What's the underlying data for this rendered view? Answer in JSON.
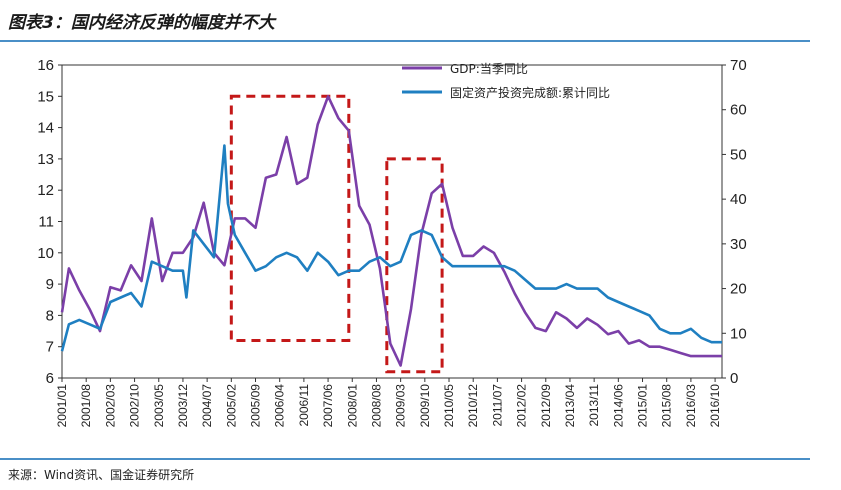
{
  "figure": {
    "title": "图表3：国内经济反弹的幅度并不大",
    "source": "来源：Wind资讯、国金证券研究所"
  },
  "chart_data": {
    "type": "line",
    "x_ticks": [
      "2001/01",
      "2001/08",
      "2002/03",
      "2002/10",
      "2003/05",
      "2003/12",
      "2004/07",
      "2005/02",
      "2005/09",
      "2006/04",
      "2006/11",
      "2007/06",
      "2008/01",
      "2008/08",
      "2009/03",
      "2009/10",
      "2010/05",
      "2010/12",
      "2011/07",
      "2012/02",
      "2012/09",
      "2013/04",
      "2013/11",
      "2014/06",
      "2015/01",
      "2015/08",
      "2016/03",
      "2016/10"
    ],
    "left_axis": {
      "ylim": [
        6,
        16
      ],
      "ticks": [
        6,
        7,
        8,
        9,
        10,
        11,
        12,
        13,
        14,
        15,
        16
      ]
    },
    "right_axis": {
      "ylim": [
        0,
        70
      ],
      "ticks": [
        0,
        10,
        20,
        30,
        40,
        50,
        60,
        70
      ]
    },
    "series": [
      {
        "name": "GDP:当季同比",
        "axis": "left",
        "color": "#7b3fa8",
        "x": [
          "2001/01",
          "2001/03",
          "2001/06",
          "2001/09",
          "2001/12",
          "2002/03",
          "2002/06",
          "2002/09",
          "2002/12",
          "2003/03",
          "2003/06",
          "2003/09",
          "2003/12",
          "2004/03",
          "2004/06",
          "2004/09",
          "2004/12",
          "2005/03",
          "2005/06",
          "2005/09",
          "2005/12",
          "2006/03",
          "2006/06",
          "2006/09",
          "2006/12",
          "2007/03",
          "2007/06",
          "2007/09",
          "2007/12",
          "2008/03",
          "2008/06",
          "2008/09",
          "2008/12",
          "2009/03",
          "2009/06",
          "2009/09",
          "2009/12",
          "2010/03",
          "2010/06",
          "2010/09",
          "2010/12",
          "2011/03",
          "2011/06",
          "2011/09",
          "2011/12",
          "2012/03",
          "2012/06",
          "2012/09",
          "2012/12",
          "2013/03",
          "2013/06",
          "2013/09",
          "2013/12",
          "2014/03",
          "2014/06",
          "2014/09",
          "2014/12",
          "2015/03",
          "2015/06",
          "2015/09",
          "2015/12",
          "2016/03",
          "2016/06",
          "2016/09",
          "2016/12"
        ],
        "values": [
          8.1,
          9.5,
          8.8,
          8.2,
          7.5,
          8.9,
          8.8,
          9.6,
          9.1,
          11.1,
          9.1,
          10.0,
          10.0,
          10.5,
          11.6,
          10.0,
          9.6,
          11.1,
          11.1,
          10.8,
          12.4,
          12.5,
          13.7,
          12.2,
          12.4,
          14.1,
          15.0,
          14.3,
          13.9,
          11.5,
          10.9,
          9.5,
          7.1,
          6.4,
          8.2,
          10.6,
          11.9,
          12.2,
          10.8,
          9.9,
          9.9,
          10.2,
          10.0,
          9.4,
          8.7,
          8.1,
          7.6,
          7.5,
          8.1,
          7.9,
          7.6,
          7.9,
          7.7,
          7.4,
          7.5,
          7.1,
          7.2,
          7.0,
          7.0,
          6.9,
          6.8,
          6.7,
          6.7,
          6.7,
          6.7
        ]
      },
      {
        "name": "固定资产投资完成额:累计同比",
        "axis": "right",
        "color": "#1f7fc1",
        "x": [
          "2001/01",
          "2001/03",
          "2001/06",
          "2001/09",
          "2001/12",
          "2002/03",
          "2002/06",
          "2002/09",
          "2002/12",
          "2003/03",
          "2003/06",
          "2003/09",
          "2003/12",
          "2004/01",
          "2004/03",
          "2004/06",
          "2004/09",
          "2004/12",
          "2005/01",
          "2005/03",
          "2005/06",
          "2005/09",
          "2005/12",
          "2006/03",
          "2006/06",
          "2006/09",
          "2006/12",
          "2007/03",
          "2007/06",
          "2007/09",
          "2007/12",
          "2008/03",
          "2008/06",
          "2008/09",
          "2008/12",
          "2009/03",
          "2009/06",
          "2009/09",
          "2009/12",
          "2010/03",
          "2010/06",
          "2010/09",
          "2010/12",
          "2011/03",
          "2011/06",
          "2011/09",
          "2011/12",
          "2012/03",
          "2012/06",
          "2012/09",
          "2012/12",
          "2013/03",
          "2013/06",
          "2013/09",
          "2013/12",
          "2014/03",
          "2014/06",
          "2014/09",
          "2014/12",
          "2015/03",
          "2015/06",
          "2015/09",
          "2015/12",
          "2016/03",
          "2016/06",
          "2016/09",
          "2016/12"
        ],
        "values": [
          6.0,
          12.0,
          13.0,
          12.0,
          11.0,
          17.0,
          18.0,
          19.0,
          16.0,
          26.0,
          25.0,
          24.0,
          24.0,
          18.0,
          33.0,
          30.0,
          27.0,
          52.0,
          39.0,
          32.0,
          28.0,
          24.0,
          25.0,
          27.0,
          28.0,
          27.0,
          24.0,
          28.0,
          26.0,
          23.0,
          24.0,
          24.0,
          26.0,
          27.0,
          25.0,
          26.0,
          32.0,
          33.0,
          32.0,
          27.0,
          25.0,
          25.0,
          25.0,
          25.0,
          25.0,
          25.0,
          24.0,
          22.0,
          20.0,
          20.0,
          20.0,
          21.0,
          20.0,
          20.0,
          20.0,
          18.0,
          17.0,
          16.0,
          15.0,
          14.0,
          11.0,
          10.0,
          10.0,
          11.0,
          9.0,
          8.0,
          8.0
        ]
      }
    ],
    "annotations": [
      {
        "type": "dashed-box",
        "from": "2005/02",
        "to": "2007/12",
        "left_range": [
          7.2,
          15.0
        ],
        "color": "#c41818"
      },
      {
        "type": "dashed-box",
        "from": "2008/11",
        "to": "2010/03",
        "left_range": [
          6.2,
          13.0
        ],
        "color": "#c41818"
      }
    ],
    "grid": false,
    "legend_position": "top-right"
  }
}
